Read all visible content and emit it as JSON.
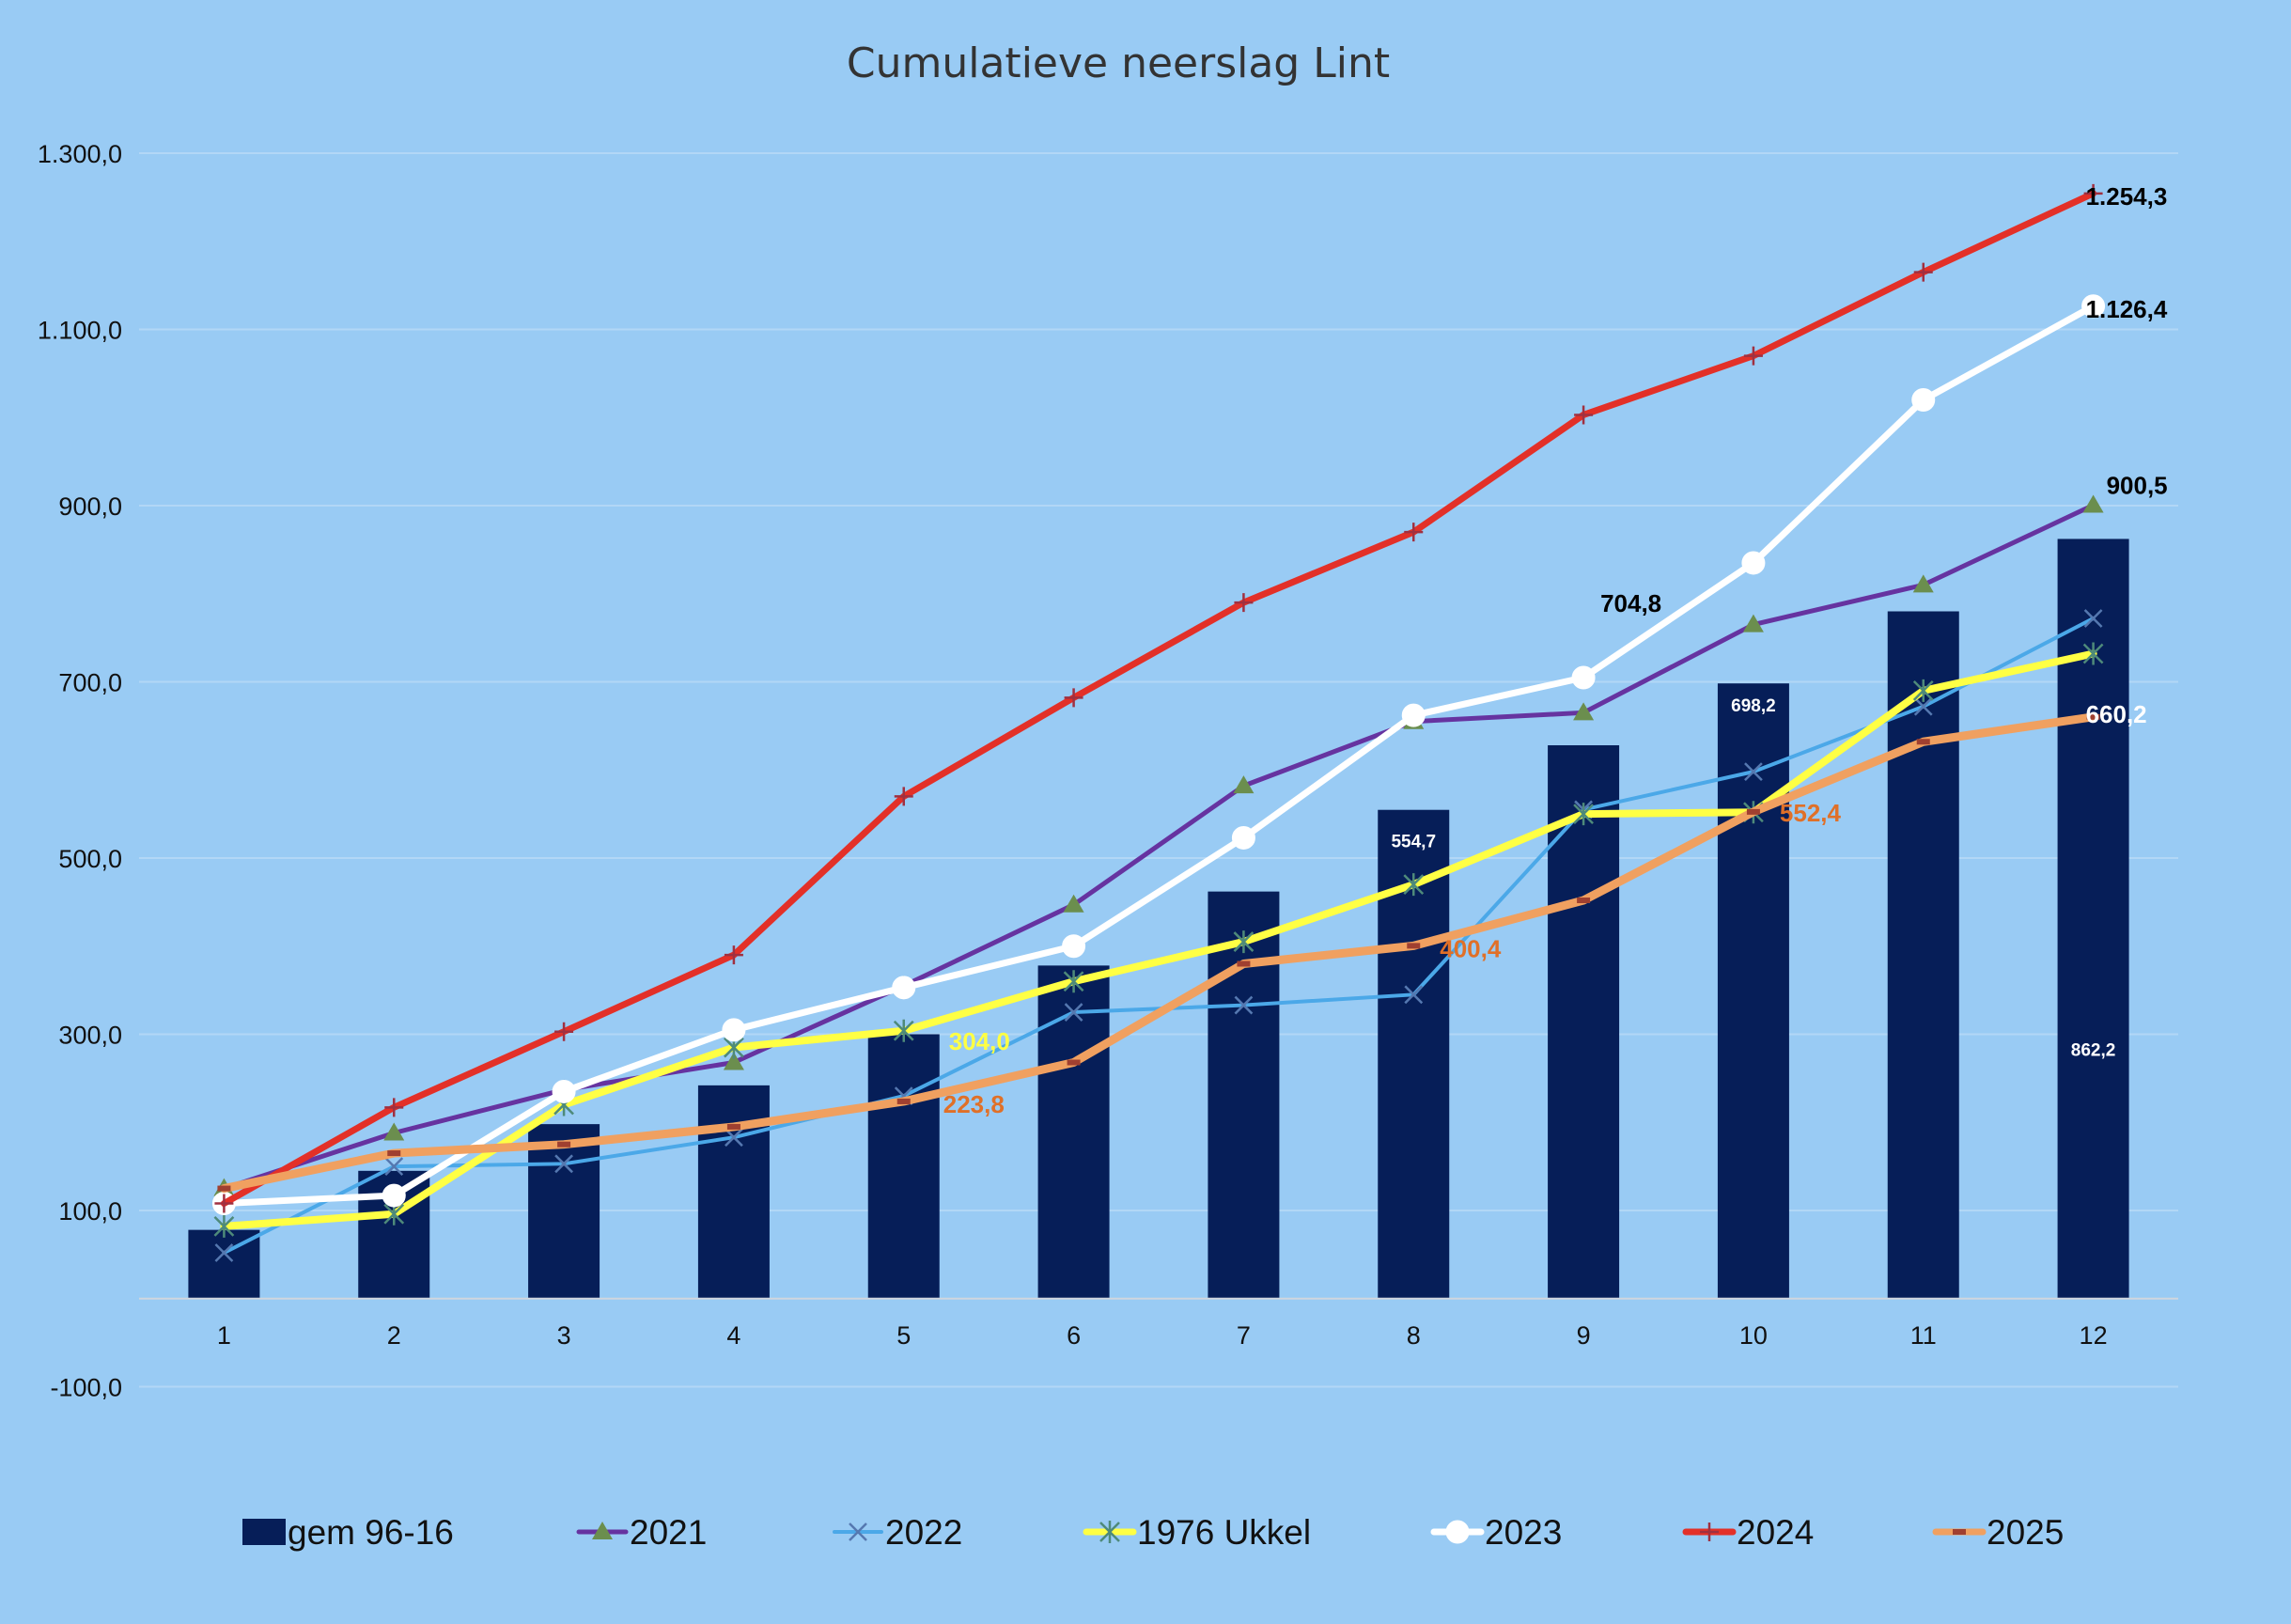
{
  "chart_data": {
    "type": "bar+line",
    "title": "Cumulatieve neerslag Lint",
    "xlabel": "",
    "ylabel": "",
    "categories": [
      "1",
      "2",
      "3",
      "4",
      "5",
      "6",
      "7",
      "8",
      "9",
      "10",
      "11",
      "12"
    ],
    "y_ticks": [
      "-100,0",
      "100,0",
      "300,0",
      "500,0",
      "700,0",
      "900,0",
      "1.100,0",
      "1.300,0"
    ],
    "y_tick_values": [
      -100,
      100,
      300,
      500,
      700,
      900,
      1100,
      1300
    ],
    "ylim": [
      -200,
      1400
    ],
    "grid": true,
    "legend_position": "bottom",
    "bars": {
      "name": "gem 96-16",
      "color": "#061E58",
      "values": [
        78,
        145,
        198,
        242,
        300,
        378,
        462,
        554.7,
        628,
        698.2,
        780,
        862.2
      ]
    },
    "series": [
      {
        "name": "2021",
        "color": "#6633A0",
        "marker": "triangle",
        "marker_color": "#6B8E4E",
        "width": 5,
        "values": [
          125,
          188,
          237,
          268,
          355,
          447,
          582,
          655,
          665,
          765,
          810,
          900.5
        ]
      },
      {
        "name": "2022",
        "color": "#4BA8E8",
        "marker": "x",
        "marker_color": "#5578B0",
        "width": 4,
        "values": [
          52,
          150,
          153,
          183,
          230,
          325,
          333,
          345,
          555,
          598,
          672,
          772
        ]
      },
      {
        "name": "1976 Ukkel",
        "color": "#FFFF44",
        "marker": "star",
        "marker_color": "#4E8A7A",
        "width": 8,
        "values": [
          82,
          96,
          220,
          285,
          304.0,
          360,
          405,
          470,
          550,
          552,
          690,
          732
        ]
      },
      {
        "name": "2023",
        "color": "#FFFFFF",
        "marker": "circle",
        "marker_color": "#FFFFFF",
        "width": 7,
        "values": [
          108,
          117,
          235,
          305,
          353,
          400,
          523,
          662,
          704.8,
          835,
          1020,
          1126.4
        ]
      },
      {
        "name": "2024",
        "color": "#E33028",
        "marker": "plus",
        "marker_color": "#A03040",
        "width": 7,
        "values": [
          108,
          217,
          303,
          390,
          570,
          682,
          790,
          870,
          1003,
          1070,
          1165,
          1254.3
        ]
      },
      {
        "name": "2025",
        "color": "#F0A060",
        "marker": "dash",
        "marker_color": "#A04030",
        "width": 9,
        "values": [
          125,
          165,
          175,
          195,
          223.8,
          268,
          380,
          400.4,
          452,
          552.4,
          632,
          660.2
        ]
      }
    ],
    "data_labels": [
      {
        "text": "1.254,3",
        "series": "2024",
        "index": 11,
        "color": "#000000",
        "size": "big",
        "dx": -8,
        "dy": 12
      },
      {
        "text": "1.126,4",
        "series": "2023",
        "index": 11,
        "color": "#000000",
        "size": "big",
        "dx": -8,
        "dy": 12
      },
      {
        "text": "900,5",
        "series": "2021",
        "index": 11,
        "color": "#000000",
        "size": "big",
        "dx": 14,
        "dy": -12
      },
      {
        "text": "660,2",
        "series": "2025",
        "index": 11,
        "color": "#FFFFFF",
        "size": "big",
        "dx": -8,
        "dy": 6
      },
      {
        "text": "704,8",
        "series": "2023",
        "index": 8,
        "color": "#000000",
        "size": "big",
        "dx": 18,
        "dy": -70
      },
      {
        "text": "552,4",
        "series": "2025",
        "index": 9,
        "color": "#E07028",
        "size": "big",
        "dx": 28,
        "dy": 10
      },
      {
        "text": "400,4",
        "series": "2025",
        "index": 7,
        "color": "#E07028",
        "size": "big",
        "dx": 28,
        "dy": 12
      },
      {
        "text": "304,0",
        "series": "1976 Ukkel",
        "index": 4,
        "color": "#FFFF44",
        "size": "big",
        "dx": 48,
        "dy": 20
      },
      {
        "text": "223,8",
        "series": "2025",
        "index": 4,
        "color": "#E07028",
        "size": "big",
        "dx": 42,
        "dy": 12
      },
      {
        "text": "554,7",
        "series": "gem 96-16",
        "index": 7,
        "color": "#FFFFFF",
        "size": "small",
        "dx": 0,
        "dy": 40
      },
      {
        "text": "698,2",
        "series": "gem 96-16",
        "index": 9,
        "color": "#FFFFFF",
        "size": "small",
        "dx": 0,
        "dy": 30
      },
      {
        "text": "862,2",
        "series": "gem 96-16",
        "index": 11,
        "color": "#FFFFFF",
        "size": "small",
        "dx": 0,
        "dy": 550
      }
    ]
  }
}
